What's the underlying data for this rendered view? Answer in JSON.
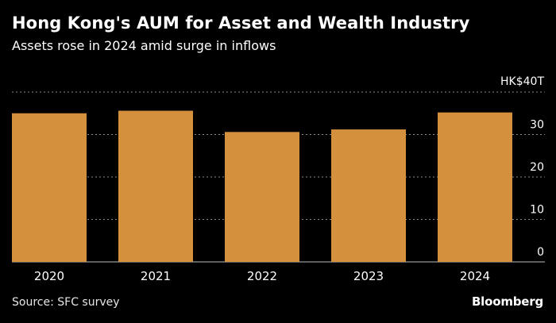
{
  "header": {
    "title": "Hong Kong's AUM for Asset and Wealth Industry",
    "subtitle": "Assets rose in 2024 amid surge in inflows"
  },
  "footer": {
    "source": "Source: SFC survey",
    "brand": "Bloomberg"
  },
  "colors": {
    "background": "#000000",
    "bar": "#D4903C",
    "gridline": "#8a8a8a",
    "text": "#ffffff"
  },
  "chart_data": {
    "type": "bar",
    "title": "Hong Kong's AUM for Asset and Wealth Industry",
    "subtitle": "Assets rose in 2024 amid surge in inflows",
    "xlabel": "",
    "ylabel": "",
    "categories": [
      "2020",
      "2021",
      "2022",
      "2023",
      "2024"
    ],
    "values": [
      35.0,
      35.6,
      30.6,
      31.2,
      35.2
    ],
    "ylim": [
      0,
      40
    ],
    "yticks": [
      0,
      10,
      20,
      30,
      40
    ],
    "ytick_labels": [
      "0",
      "10",
      "20",
      "30",
      "HK$40T"
    ],
    "grid": true,
    "grid_style": "dotted",
    "y_axis_side": "right",
    "legend": "none"
  }
}
